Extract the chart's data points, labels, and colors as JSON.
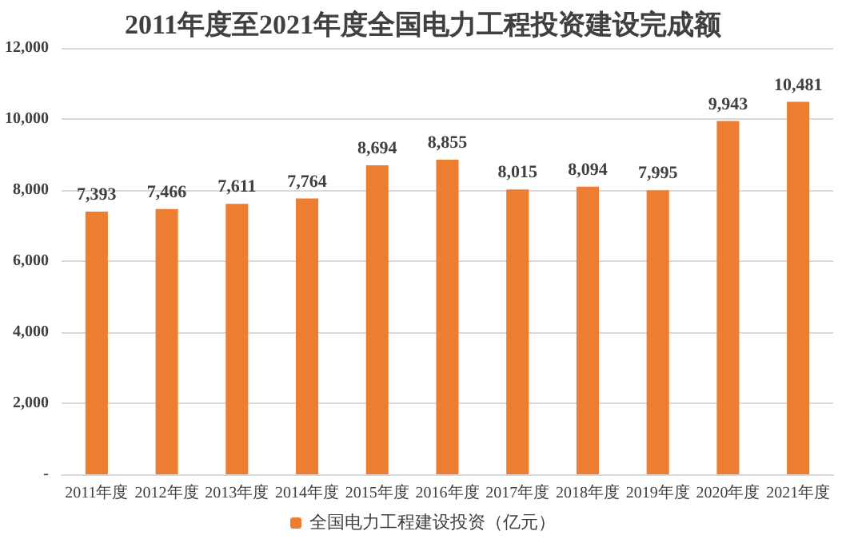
{
  "chart_data": {
    "type": "bar",
    "title": "2011年度至2021年度全国电力工程投资建设完成额",
    "categories": [
      "2011年度",
      "2012年度",
      "2013年度",
      "2014年度",
      "2015年度",
      "2016年度",
      "2017年度",
      "2018年度",
      "2019年度",
      "2020年度",
      "2021年度"
    ],
    "series": [
      {
        "name": "全国电力工程建设投资（亿元）",
        "color": "#ed7d31",
        "values": [
          7393,
          7466,
          7611,
          7764,
          8694,
          8855,
          8015,
          8094,
          7995,
          9943,
          10481
        ],
        "value_labels": [
          "7,393",
          "7,466",
          "7,611",
          "7,764",
          "8,694",
          "8,855",
          "8,015",
          "8,094",
          "7,995",
          "9,943",
          "10,481"
        ]
      }
    ],
    "ylim": [
      0,
      12000
    ],
    "yticks": [
      {
        "value": 0,
        "label": "-"
      },
      {
        "value": 2000,
        "label": "2,000"
      },
      {
        "value": 4000,
        "label": "4,000"
      },
      {
        "value": 6000,
        "label": "6,000"
      },
      {
        "value": 8000,
        "label": "8,000"
      },
      {
        "value": 10000,
        "label": "10,000"
      },
      {
        "value": 12000,
        "label": "12,000"
      }
    ],
    "grid": "y",
    "legend": "bottom"
  }
}
